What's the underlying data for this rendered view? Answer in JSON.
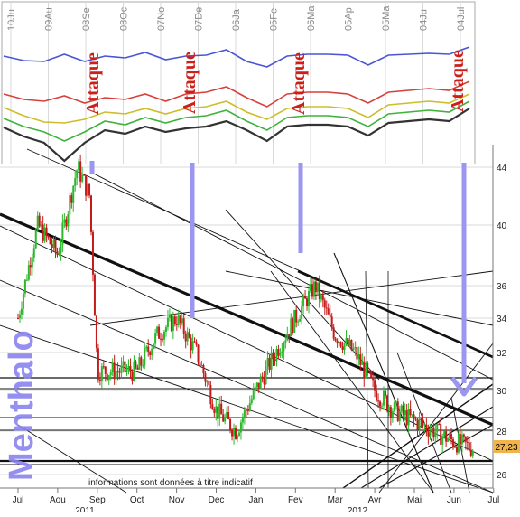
{
  "chart_data": [
    {
      "type": "line",
      "panel": "indicator",
      "x_tick_labels": [
        "10Ju",
        "09Au",
        "08Se",
        "08Oc",
        "07No",
        "07De",
        "06Ja",
        "05Fe",
        "06Ma",
        "05Ap",
        "05Ma",
        "04Ju",
        "04Jul"
      ],
      "series_colors": [
        "#4a55d6",
        "#d6403a",
        "#cdbd2a",
        "#3fb23b",
        "#333333"
      ],
      "series": [
        {
          "values": [
            62,
            67,
            68,
            60,
            68,
            62,
            64,
            58,
            66,
            62,
            61,
            55,
            68,
            74,
            62,
            60,
            60,
            61,
            72,
            61,
            60,
            59,
            60,
            52
          ]
        },
        {
          "values": [
            104,
            110,
            112,
            106,
            114,
            108,
            110,
            104,
            112,
            104,
            102,
            96,
            108,
            118,
            104,
            102,
            102,
            104,
            114,
            102,
            100,
            98,
            100,
            90
          ]
        },
        {
          "values": [
            119,
            128,
            135,
            136,
            132,
            124,
            126,
            120,
            126,
            120,
            118,
            112,
            124,
            132,
            120,
            118,
            118,
            120,
            130,
            116,
            114,
            112,
            114,
            104
          ]
        },
        {
          "values": [
            131,
            140,
            146,
            156,
            146,
            134,
            138,
            130,
            136,
            130,
            128,
            122,
            134,
            144,
            130,
            128,
            128,
            130,
            140,
            126,
            124,
            122,
            124,
            112
          ]
        },
        {
          "values": [
            141,
            151,
            158,
            178,
            158,
            144,
            148,
            140,
            146,
            142,
            140,
            134,
            144,
            156,
            140,
            138,
            138,
            140,
            150,
            136,
            134,
            132,
            134,
            120
          ]
        }
      ]
    },
    {
      "type": "candlestick",
      "panel": "price",
      "x_tick_labels": [
        "Jul",
        "Aou",
        "Sep",
        "Oct",
        "Nov",
        "Dec",
        "Jan",
        "Fev",
        "Mar",
        "Avr",
        "Mai",
        "Jun",
        "Jul"
      ],
      "year_labels": [
        "2011",
        "2012"
      ],
      "y_tick_labels": [
        "44",
        "40",
        "36",
        "34",
        "32",
        "30",
        "28",
        "26"
      ],
      "y_scale": "log",
      "ylim": [
        25.2,
        45
      ],
      "last_price_label": "27,23",
      "close_path": [
        {
          "month": 0,
          "value": 34
        },
        {
          "month": 0.5,
          "value": 40
        },
        {
          "month": 1,
          "value": 38
        },
        {
          "month": 1.5,
          "value": 44
        },
        {
          "month": 1.8,
          "value": 42
        },
        {
          "month": 2,
          "value": 31
        },
        {
          "month": 2.5,
          "value": 31
        },
        {
          "month": 3,
          "value": 31
        },
        {
          "month": 3.5,
          "value": 33
        },
        {
          "month": 4,
          "value": 34
        },
        {
          "month": 4.5,
          "value": 32
        },
        {
          "month": 5,
          "value": 29
        },
        {
          "month": 5.5,
          "value": 28
        },
        {
          "month": 6,
          "value": 30
        },
        {
          "month": 6.5,
          "value": 32
        },
        {
          "month": 7,
          "value": 34
        },
        {
          "month": 7.5,
          "value": 36
        },
        {
          "month": 8,
          "value": 33
        },
        {
          "month": 8.5,
          "value": 32
        },
        {
          "month": 9,
          "value": 30
        },
        {
          "month": 9.5,
          "value": 29
        },
        {
          "month": 10,
          "value": 28.5
        },
        {
          "month": 10.5,
          "value": 28
        },
        {
          "month": 11,
          "value": 27.5
        },
        {
          "month": 11.5,
          "value": 27.2
        }
      ],
      "footer_note": "informations sont données à titre indicatif"
    }
  ],
  "annotations": {
    "attack_label": "Attaque",
    "watermark": "Menthalo",
    "colors": {
      "attack_text": "#cc1f1a",
      "arrow": "#9b96ef",
      "watermark": "#8a85ee",
      "price_up": "#2bb82b",
      "price_down": "#c41a1a"
    }
  }
}
